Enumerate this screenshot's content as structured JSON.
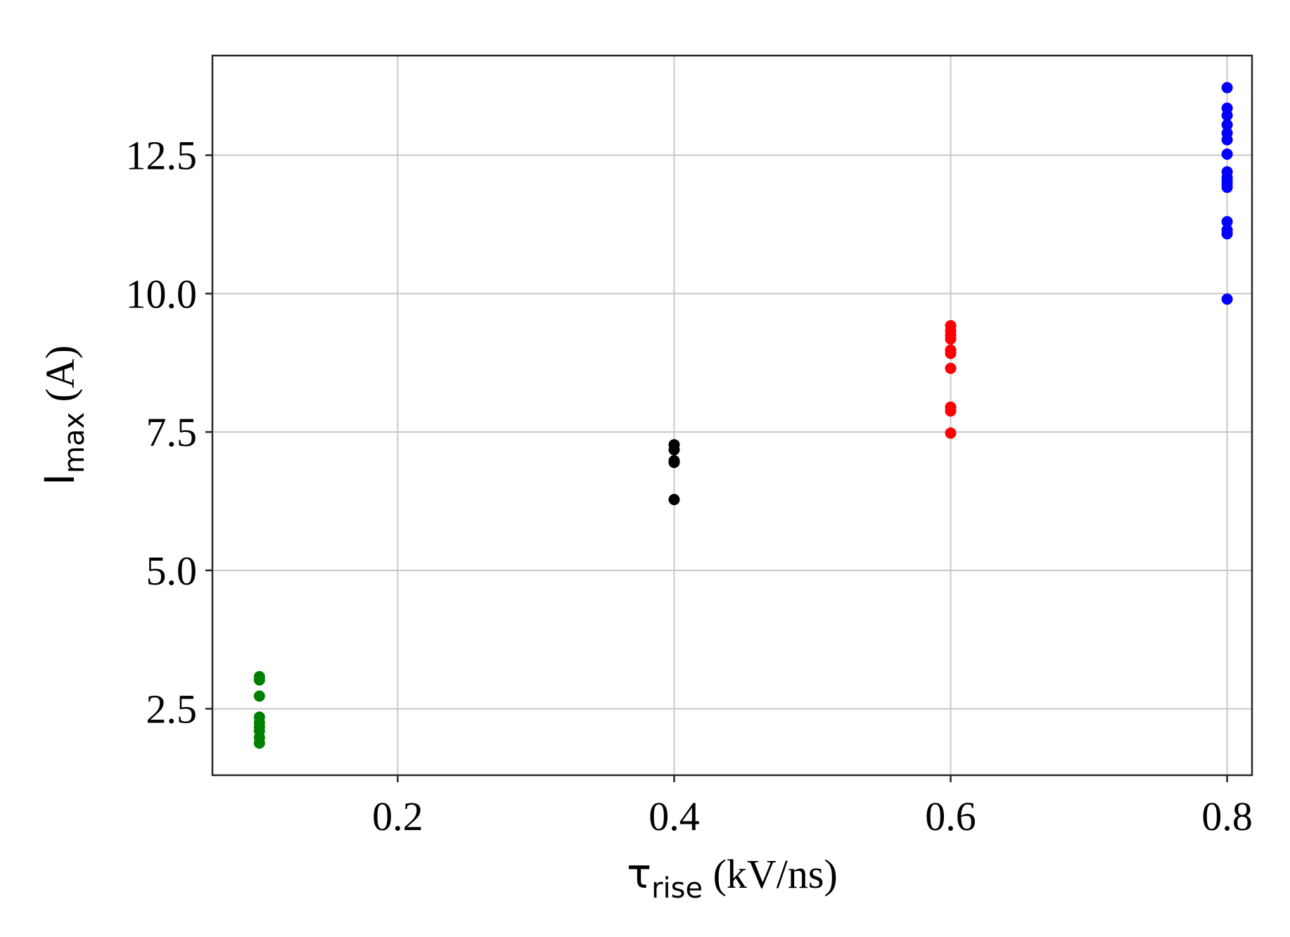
{
  "chart_data": {
    "type": "scatter",
    "title": "",
    "xlabel": {
      "symbol": "τ",
      "subscript": "rise",
      "unit": " (kV/ns)"
    },
    "ylabel": {
      "symbol": "I",
      "subscript": "max",
      "unit": " (A)"
    },
    "xlim": [
      0.066,
      0.818
    ],
    "ylim": [
      1.3,
      14.3
    ],
    "xticks": [
      0.2,
      0.4,
      0.6,
      0.8
    ],
    "xtick_labels": [
      "0.2",
      "0.4",
      "0.6",
      "0.8"
    ],
    "yticks": [
      2.5,
      5.0,
      7.5,
      10.0,
      12.5
    ],
    "ytick_labels": [
      "2.5",
      "5.0",
      "7.5",
      "10.0",
      "12.5"
    ],
    "grid": true,
    "legend": null,
    "series": [
      {
        "color": "#008000",
        "x": [
          0.1,
          0.1,
          0.1,
          0.1,
          0.1,
          0.1,
          0.1,
          0.1,
          0.1
        ],
        "y": [
          3.08,
          3.02,
          2.73,
          2.35,
          2.25,
          2.18,
          2.1,
          1.98,
          1.88
        ]
      },
      {
        "color": "#000000",
        "x": [
          0.4,
          0.4,
          0.4,
          0.4,
          0.4
        ],
        "y": [
          7.27,
          7.18,
          6.98,
          6.95,
          6.28
        ]
      },
      {
        "color": "#ff0000",
        "x": [
          0.6,
          0.6,
          0.6,
          0.6,
          0.6,
          0.6,
          0.6,
          0.6,
          0.6,
          0.6
        ],
        "y": [
          9.42,
          9.33,
          9.25,
          9.18,
          8.98,
          8.92,
          8.65,
          7.95,
          7.88,
          7.48
        ]
      },
      {
        "color": "#0000ff",
        "x": [
          0.8,
          0.8,
          0.8,
          0.8,
          0.8,
          0.8,
          0.8,
          0.8,
          0.8,
          0.8,
          0.8,
          0.8,
          0.8,
          0.8,
          0.8,
          0.8
        ],
        "y": [
          13.72,
          13.35,
          13.22,
          13.05,
          12.9,
          12.78,
          12.52,
          12.2,
          12.1,
          12.05,
          11.98,
          11.92,
          11.3,
          11.15,
          11.08,
          9.9
        ]
      }
    ]
  }
}
